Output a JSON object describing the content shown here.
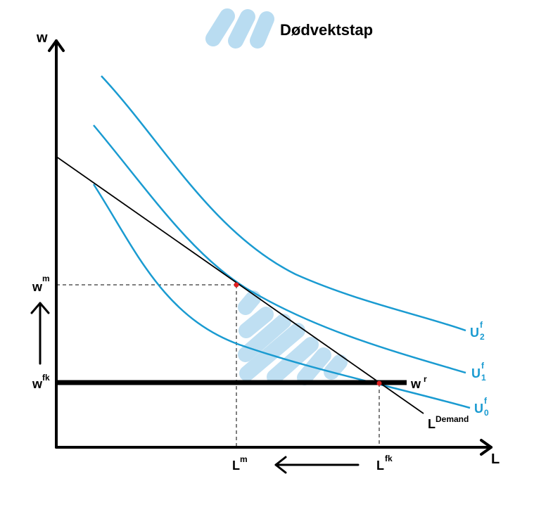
{
  "legend": {
    "title": "Dødvektstap",
    "swatch_color": "#b9dcf1"
  },
  "axes": {
    "y_label": "w",
    "x_label": "L"
  },
  "labels": {
    "wm": {
      "main": "w",
      "sup": "m"
    },
    "wfk": {
      "main": "w",
      "sup": "fk"
    },
    "wr": {
      "main": "w",
      "sup": "r"
    },
    "lm": {
      "main": "L",
      "sup": "m"
    },
    "lfk": {
      "main": "L",
      "sup": "fk"
    },
    "ldemand": {
      "main": "L",
      "sup": "Demand"
    },
    "u2": {
      "main": "U",
      "sup": "f",
      "sub": "2"
    },
    "u1": {
      "main": "U",
      "sup": "f",
      "sub": "1"
    },
    "u0": {
      "main": "U",
      "sup": "f",
      "sub": "0"
    }
  },
  "colors": {
    "curve": "#1a9bd1",
    "line": "#000000",
    "point": "#e02020",
    "deadweight": "#b9dcf1"
  },
  "arrows": {
    "wage_change": "up-arrow",
    "employment_change": "left-arrow"
  }
}
